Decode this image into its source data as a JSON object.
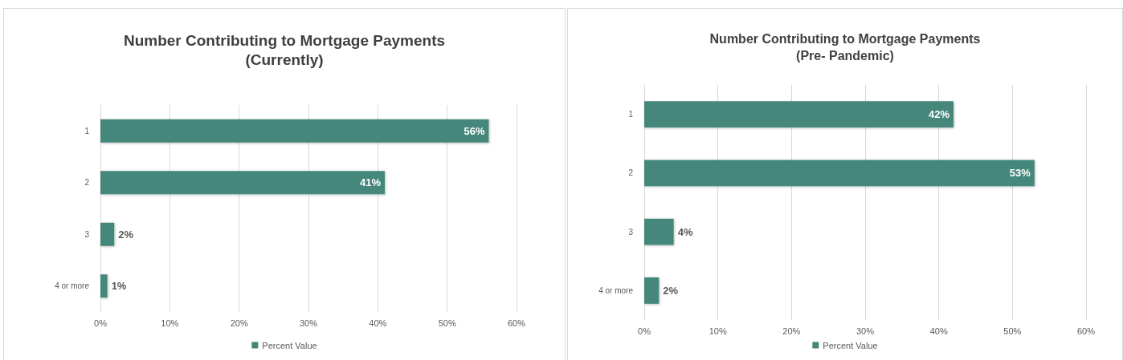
{
  "chart_data": [
    {
      "type": "bar",
      "orientation": "horizontal",
      "title": "Number Contributing to Mortgage Payments\n(Currently)",
      "categories": [
        "1",
        "2",
        "3",
        "4 or more"
      ],
      "series": [
        {
          "name": "Percent Value",
          "color": "#44877a",
          "values": [
            56,
            41,
            2,
            1
          ],
          "value_labels": [
            "56%",
            "41%",
            "2%",
            "1%"
          ]
        }
      ],
      "xlim": [
        0,
        60
      ],
      "xticks": [
        {
          "value": 0,
          "label": "0%"
        },
        {
          "value": 10,
          "label": "10%"
        },
        {
          "value": 20,
          "label": "20%"
        },
        {
          "value": 30,
          "label": "30%"
        },
        {
          "value": 40,
          "label": "40%"
        },
        {
          "value": 50,
          "label": "50%"
        },
        {
          "value": 60,
          "label": "60%"
        }
      ],
      "grid": "x",
      "legend": "bottom"
    },
    {
      "type": "bar",
      "orientation": "horizontal",
      "title": "Number Contributing to Mortgage Payments\n(Pre- Pandemic)",
      "categories": [
        "1",
        "2",
        "3",
        "4 or more"
      ],
      "series": [
        {
          "name": "Percent Value",
          "color": "#44877a",
          "values": [
            42,
            53,
            4,
            2
          ],
          "value_labels": [
            "42%",
            "53%",
            "4%",
            "2%"
          ]
        }
      ],
      "xlim": [
        0,
        60
      ],
      "xticks": [
        {
          "value": 0,
          "label": "0%"
        },
        {
          "value": 10,
          "label": "10%"
        },
        {
          "value": 20,
          "label": "20%"
        },
        {
          "value": 30,
          "label": "30%"
        },
        {
          "value": 40,
          "label": "40%"
        },
        {
          "value": 50,
          "label": "50%"
        },
        {
          "value": 60,
          "label": "60%"
        }
      ],
      "grid": "x",
      "legend": "bottom"
    }
  ]
}
